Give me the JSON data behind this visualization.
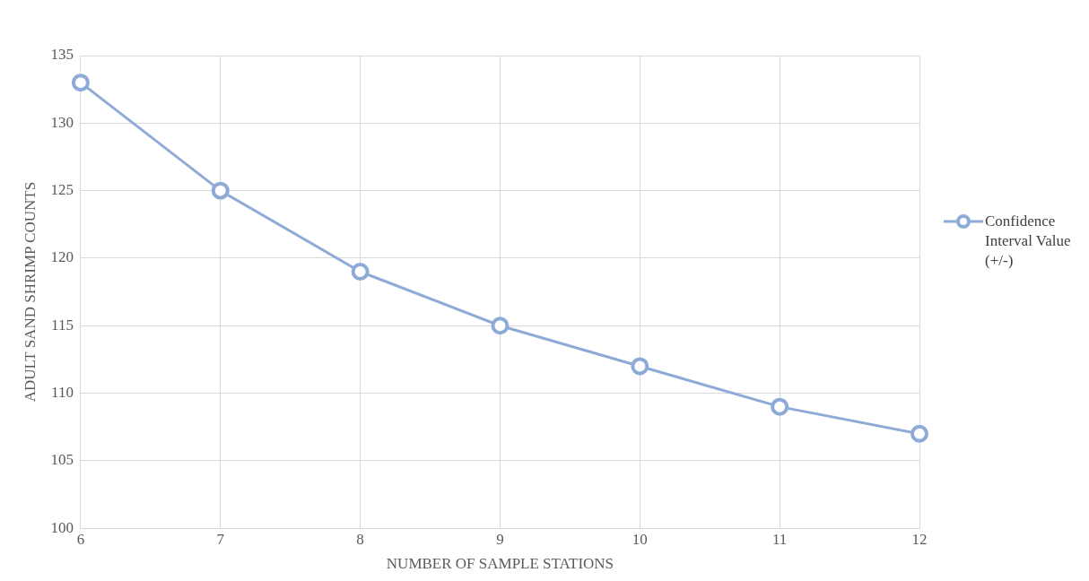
{
  "chart_data": {
    "type": "line",
    "xlabel": "NUMBER OF SAMPLE STATIONS",
    "ylabel": "ADULT SAND SHRIMP COUNTS",
    "x": [
      6,
      7,
      8,
      9,
      10,
      11,
      12
    ],
    "series": [
      {
        "name": "Confidence Interval Value (+/-)",
        "color": "#8eaad6",
        "values": [
          133,
          125,
          119,
          115,
          112,
          109,
          107
        ]
      }
    ],
    "xlim": [
      6,
      12
    ],
    "xticks": [
      6,
      7,
      8,
      9,
      10,
      11,
      12
    ],
    "ylim": [
      100,
      135
    ],
    "yticks": [
      100,
      105,
      110,
      115,
      120,
      125,
      130,
      135
    ],
    "grid": true,
    "legend": "right",
    "marker": "circle",
    "line_style": "solid"
  }
}
